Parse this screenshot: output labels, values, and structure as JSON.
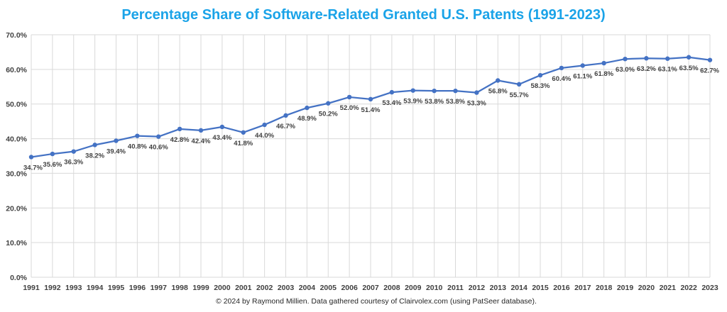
{
  "chart_data": {
    "type": "line",
    "title": "Percentage Share of Software-Related Granted U.S. Patents (1991-2023)",
    "title_color": "#1aa3e8",
    "line_color": "#4472c4",
    "grid": true,
    "legend": "none",
    "ylim": [
      0,
      70
    ],
    "y_ticks": [
      "0.0%",
      "10.0%",
      "20.0%",
      "30.0%",
      "40.0%",
      "50.0%",
      "60.0%",
      "70.0%"
    ],
    "categories": [
      "1991",
      "1992",
      "1993",
      "1994",
      "1995",
      "1996",
      "1997",
      "1998",
      "1999",
      "2000",
      "2001",
      "2002",
      "2003",
      "2004",
      "2005",
      "2006",
      "2007",
      "2008",
      "2009",
      "2010",
      "2011",
      "2012",
      "2013",
      "2014",
      "2015",
      "2016",
      "2017",
      "2018",
      "2019",
      "2020",
      "2021",
      "2022",
      "2023"
    ],
    "values": [
      34.7,
      35.6,
      36.3,
      38.2,
      39.4,
      40.8,
      40.6,
      42.8,
      42.4,
      43.4,
      41.8,
      44.0,
      46.7,
      48.9,
      50.2,
      52.0,
      51.4,
      53.4,
      53.9,
      53.8,
      53.8,
      53.3,
      56.8,
      55.7,
      58.3,
      60.4,
      61.1,
      61.8,
      63.0,
      63.2,
      63.1,
      63.5,
      62.7
    ],
    "data_labels": [
      "34.7%",
      "35.6%",
      "36.3%",
      "38.2%",
      "39.4%",
      "40.8%",
      "40.6%",
      "42.8%",
      "42.4%",
      "43.4%",
      "41.8%",
      "44.0%",
      "46.7%",
      "48.9%",
      "50.2%",
      "52.0%",
      "51.4%",
      "53.4%",
      "53.9%",
      "53.8%",
      "53.8%",
      "53.3%",
      "56.8%",
      "55.7%",
      "58.3%",
      "60.4%",
      "61.1%",
      "61.8%",
      "63.0%",
      "63.2%",
      "63.1%",
      "63.5%",
      "62.7%"
    ],
    "xlabel": "",
    "ylabel": "",
    "footnote": "© 2024 by Raymond Millien. Data gathered courtesy of Clairvolex.com (using PatSeer database)."
  }
}
